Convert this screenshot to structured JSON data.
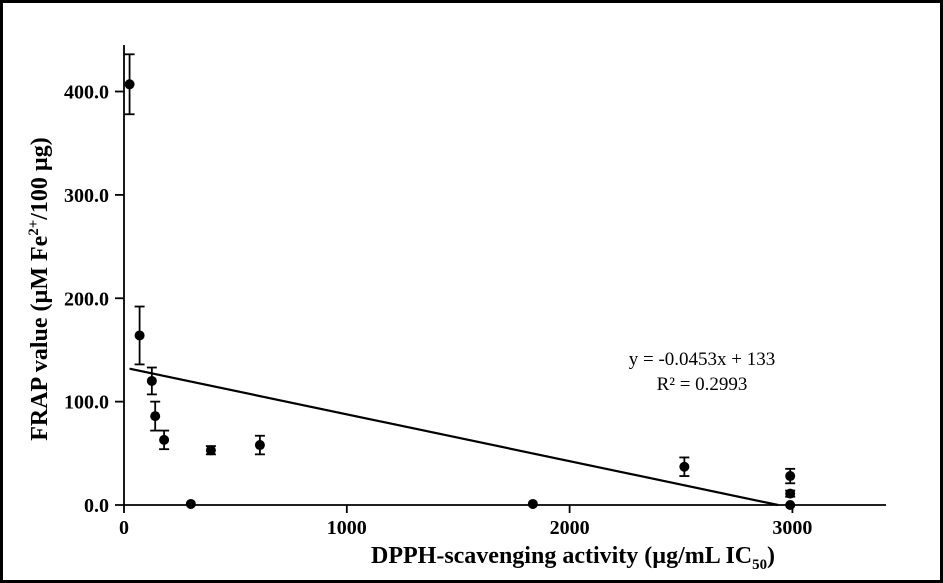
{
  "chart_data": {
    "type": "scatter",
    "title": "",
    "xlabel": "DPPH-scavenging activity (µg/mL IC50)",
    "xlabel_parts": {
      "pre": "DPPH-scavenging activity (µg/mL IC",
      "sub": "50",
      "post": ")"
    },
    "ylabel": "FRAP value (µM Fe2+/100 µg)",
    "ylabel_parts": {
      "pre": "FRAP value (µM Fe",
      "sup": "2+",
      "post": "/100 µg)"
    },
    "xlim": [
      0,
      3420
    ],
    "ylim": [
      0,
      445
    ],
    "grid": false,
    "legend": false,
    "x_ticks": [
      {
        "value": 0,
        "label": "0"
      },
      {
        "value": 1000,
        "label": "1000"
      },
      {
        "value": 2000,
        "label": "2000"
      },
      {
        "value": 3000,
        "label": "3000"
      }
    ],
    "y_ticks": [
      {
        "value": 0,
        "label": "0.0"
      },
      {
        "value": 100,
        "label": "100.0"
      },
      {
        "value": 200,
        "label": "200.0"
      },
      {
        "value": 300,
        "label": "300.0"
      },
      {
        "value": 400,
        "label": "400.0"
      }
    ],
    "points": [
      {
        "x": 25,
        "y": 407,
        "err": 29
      },
      {
        "x": 70,
        "y": 164,
        "err": 28
      },
      {
        "x": 125,
        "y": 120,
        "err": 13
      },
      {
        "x": 140,
        "y": 86,
        "err": 14
      },
      {
        "x": 180,
        "y": 63,
        "err": 9
      },
      {
        "x": 300,
        "y": 1,
        "err": 0
      },
      {
        "x": 390,
        "y": 53,
        "err": 4
      },
      {
        "x": 610,
        "y": 58,
        "err": 9
      },
      {
        "x": 1835,
        "y": 1,
        "err": 0
      },
      {
        "x": 2515,
        "y": 37,
        "err": 9
      },
      {
        "x": 2990,
        "y": 28,
        "err": 7
      },
      {
        "x": 2990,
        "y": 11,
        "err": 3
      },
      {
        "x": 2990,
        "y": 0,
        "err": 0
      }
    ],
    "trendline": {
      "slope": -0.0453,
      "intercept": 133,
      "x_start": 25,
      "x_end": 2936
    },
    "annotation": {
      "line1": "y = -0.0453x + 133",
      "line2": "R² = 0.2993"
    },
    "colors": {
      "marker": "#000000",
      "axis": "#000000",
      "trendline": "#000000",
      "background": "#ffffff",
      "border": "#000000"
    }
  }
}
